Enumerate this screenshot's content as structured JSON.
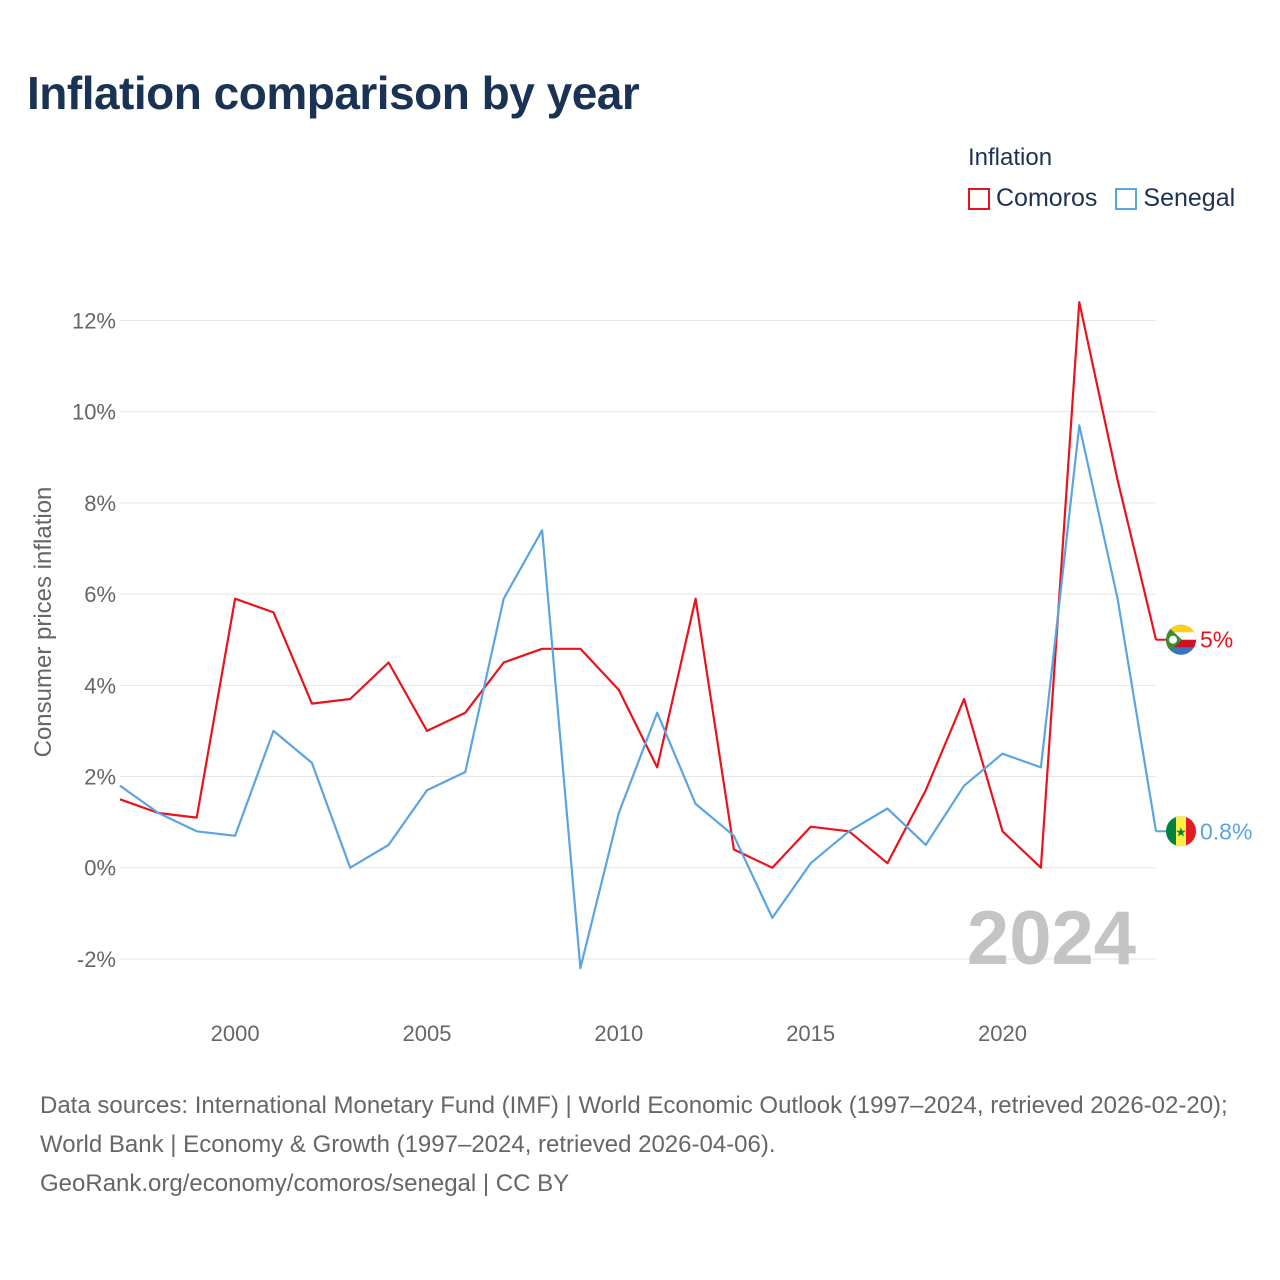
{
  "title": "Inflation comparison by year",
  "legend": {
    "title": "Inflation",
    "items": [
      {
        "name": "Comoros",
        "color": "#e8131b"
      },
      {
        "name": "Senegal",
        "color": "#5aa4e2"
      }
    ]
  },
  "year_watermark": "2024",
  "footer": {
    "sources": "Data sources: International Monetary Fund (IMF) | World Economic Outlook (1997–2024, retrieved 2026-02-20); World Bank | Economy & Growth (1997–2024, retrieved 2026-04-06).",
    "credit": "GeoRank.org/economy/comoros/senegal | CC BY"
  },
  "chart_data": {
    "type": "line",
    "title": "Inflation comparison by year",
    "xlabel": "",
    "ylabel": "Consumer prices inflation",
    "xlim": [
      1997,
      2024
    ],
    "ylim": [
      -2.9,
      12.8
    ],
    "x_ticks": [
      2000,
      2005,
      2010,
      2015,
      2020
    ],
    "y_ticks": [
      -2,
      0,
      2,
      4,
      6,
      8,
      10,
      12
    ],
    "y_tick_labels": [
      "-2%",
      "0%",
      "2%",
      "4%",
      "6%",
      "8%",
      "10%",
      "12%"
    ],
    "grid": true,
    "legend_position": "top-right",
    "x": [
      1997,
      1998,
      1999,
      2000,
      2001,
      2002,
      2003,
      2004,
      2005,
      2006,
      2007,
      2008,
      2009,
      2010,
      2011,
      2012,
      2013,
      2014,
      2015,
      2016,
      2017,
      2018,
      2019,
      2020,
      2021,
      2022,
      2023,
      2024
    ],
    "series": [
      {
        "name": "Comoros",
        "color": "#e8131b",
        "values": [
          1.5,
          1.2,
          1.1,
          5.9,
          5.6,
          3.6,
          3.7,
          4.5,
          3.0,
          3.4,
          4.5,
          4.8,
          4.8,
          3.9,
          2.2,
          5.9,
          0.4,
          0.0,
          0.9,
          0.8,
          0.1,
          1.7,
          3.7,
          0.8,
          0.0,
          12.4,
          8.5,
          5.0
        ],
        "end_label": "5%"
      },
      {
        "name": "Senegal",
        "color": "#5aa4e2",
        "values": [
          1.8,
          1.2,
          0.8,
          0.7,
          3.0,
          2.3,
          0.0,
          0.5,
          1.7,
          2.1,
          5.9,
          7.4,
          -2.2,
          1.2,
          3.4,
          1.4,
          0.7,
          -1.1,
          0.1,
          0.8,
          1.3,
          0.5,
          1.8,
          2.5,
          2.2,
          9.7,
          5.9,
          0.8
        ],
        "end_label": "0.8%"
      }
    ]
  }
}
